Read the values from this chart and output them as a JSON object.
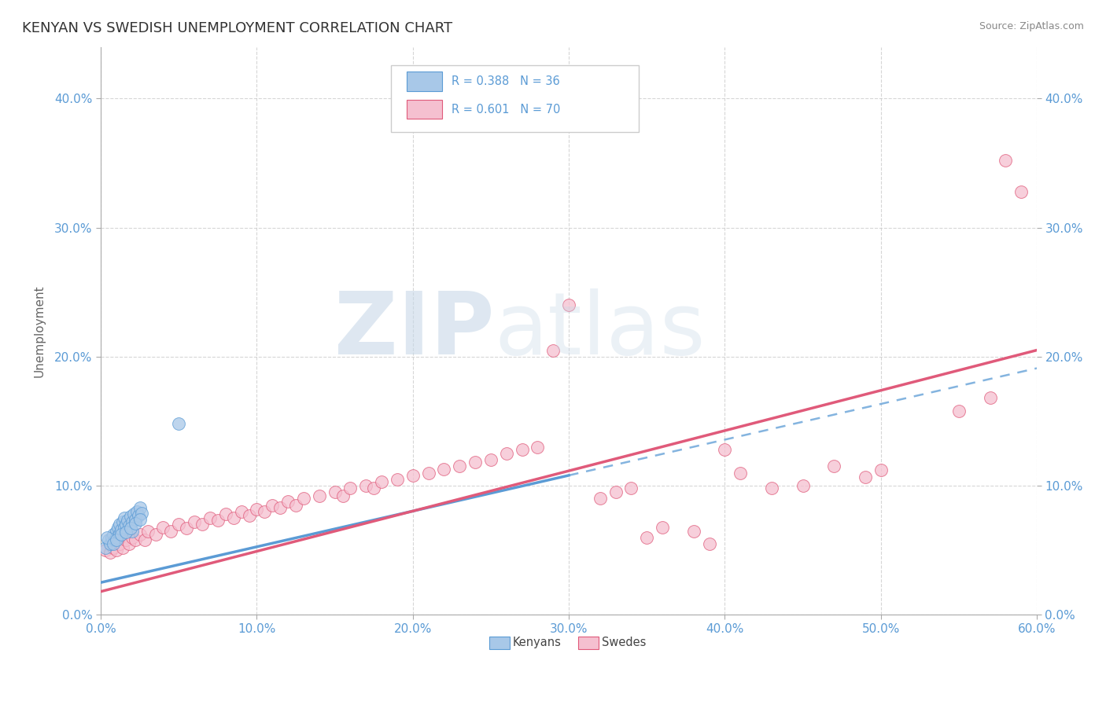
{
  "title": "KENYAN VS SWEDISH UNEMPLOYMENT CORRELATION CHART",
  "source": "Source: ZipAtlas.com",
  "xlim": [
    0,
    0.6
  ],
  "ylim": [
    0,
    0.44
  ],
  "xticks": [
    0.0,
    0.1,
    0.2,
    0.3,
    0.4,
    0.5,
    0.6
  ],
  "yticks": [
    0.0,
    0.1,
    0.2,
    0.3,
    0.4
  ],
  "xtick_labels": [
    "0.0%",
    "10.0%",
    "20.0%",
    "30.0%",
    "40.0%",
    "50.0%",
    "60.0%"
  ],
  "ytick_labels": [
    "0.0%",
    "10.0%",
    "20.0%",
    "30.0%",
    "40.0%"
  ],
  "watermark_zip": "ZIP",
  "watermark_atlas": "atlas",
  "kenya_line_color": "#5b9bd5",
  "sweden_line_color": "#e05a7a",
  "scatter_kenya_color": "#a8c8e8",
  "scatter_sweden_color": "#f5c0d0",
  "scatter_kenya_edge": "#5b9bd5",
  "scatter_sweden_edge": "#e05a7a",
  "axis_label_color": "#5b9bd5",
  "background_color": "#ffffff",
  "grid_color": "#cccccc",
  "title_fontsize": 13,
  "watermark_fontsize": 80,
  "kenya_line": {
    "x0": 0.0,
    "y0": 0.025,
    "x1": 0.3,
    "y1": 0.108,
    "solid_end": 0.3,
    "dash_end": 0.6
  },
  "sweden_line": {
    "x0": 0.0,
    "y0": 0.018,
    "x1": 0.6,
    "y1": 0.205
  },
  "kenya_scatter": [
    [
      0.003,
      0.052
    ],
    [
      0.005,
      0.058
    ],
    [
      0.006,
      0.055
    ],
    [
      0.007,
      0.06
    ],
    [
      0.008,
      0.062
    ],
    [
      0.009,
      0.058
    ],
    [
      0.01,
      0.065
    ],
    [
      0.01,
      0.06
    ],
    [
      0.011,
      0.068
    ],
    [
      0.012,
      0.063
    ],
    [
      0.012,
      0.07
    ],
    [
      0.013,
      0.066
    ],
    [
      0.014,
      0.072
    ],
    [
      0.015,
      0.068
    ],
    [
      0.015,
      0.075
    ],
    [
      0.016,
      0.07
    ],
    [
      0.017,
      0.073
    ],
    [
      0.018,
      0.069
    ],
    [
      0.019,
      0.076
    ],
    [
      0.02,
      0.072
    ],
    [
      0.02,
      0.065
    ],
    [
      0.021,
      0.078
    ],
    [
      0.022,
      0.074
    ],
    [
      0.023,
      0.08
    ],
    [
      0.024,
      0.077
    ],
    [
      0.025,
      0.083
    ],
    [
      0.026,
      0.079
    ],
    [
      0.004,
      0.06
    ],
    [
      0.008,
      0.055
    ],
    [
      0.01,
      0.058
    ],
    [
      0.013,
      0.062
    ],
    [
      0.05,
      0.148
    ],
    [
      0.016,
      0.064
    ],
    [
      0.019,
      0.067
    ],
    [
      0.022,
      0.071
    ],
    [
      0.025,
      0.074
    ]
  ],
  "sweden_scatter": [
    [
      0.003,
      0.05
    ],
    [
      0.006,
      0.048
    ],
    [
      0.008,
      0.052
    ],
    [
      0.01,
      0.05
    ],
    [
      0.012,
      0.055
    ],
    [
      0.014,
      0.052
    ],
    [
      0.016,
      0.058
    ],
    [
      0.018,
      0.055
    ],
    [
      0.02,
      0.06
    ],
    [
      0.022,
      0.058
    ],
    [
      0.025,
      0.062
    ],
    [
      0.028,
      0.058
    ],
    [
      0.03,
      0.065
    ],
    [
      0.035,
      0.062
    ],
    [
      0.04,
      0.068
    ],
    [
      0.045,
      0.065
    ],
    [
      0.05,
      0.07
    ],
    [
      0.055,
      0.067
    ],
    [
      0.06,
      0.072
    ],
    [
      0.065,
      0.07
    ],
    [
      0.07,
      0.075
    ],
    [
      0.075,
      0.073
    ],
    [
      0.08,
      0.078
    ],
    [
      0.085,
      0.075
    ],
    [
      0.09,
      0.08
    ],
    [
      0.095,
      0.077
    ],
    [
      0.1,
      0.082
    ],
    [
      0.105,
      0.08
    ],
    [
      0.11,
      0.085
    ],
    [
      0.115,
      0.083
    ],
    [
      0.12,
      0.088
    ],
    [
      0.125,
      0.085
    ],
    [
      0.13,
      0.09
    ],
    [
      0.14,
      0.092
    ],
    [
      0.15,
      0.095
    ],
    [
      0.155,
      0.092
    ],
    [
      0.16,
      0.098
    ],
    [
      0.17,
      0.1
    ],
    [
      0.175,
      0.098
    ],
    [
      0.18,
      0.103
    ],
    [
      0.19,
      0.105
    ],
    [
      0.2,
      0.108
    ],
    [
      0.21,
      0.11
    ],
    [
      0.22,
      0.113
    ],
    [
      0.23,
      0.115
    ],
    [
      0.24,
      0.118
    ],
    [
      0.25,
      0.12
    ],
    [
      0.26,
      0.125
    ],
    [
      0.27,
      0.128
    ],
    [
      0.28,
      0.13
    ],
    [
      0.29,
      0.205
    ],
    [
      0.3,
      0.24
    ],
    [
      0.32,
      0.09
    ],
    [
      0.33,
      0.095
    ],
    [
      0.34,
      0.098
    ],
    [
      0.35,
      0.06
    ],
    [
      0.36,
      0.068
    ],
    [
      0.38,
      0.065
    ],
    [
      0.39,
      0.055
    ],
    [
      0.4,
      0.128
    ],
    [
      0.41,
      0.11
    ],
    [
      0.43,
      0.098
    ],
    [
      0.45,
      0.1
    ],
    [
      0.47,
      0.115
    ],
    [
      0.49,
      0.107
    ],
    [
      0.5,
      0.112
    ],
    [
      0.55,
      0.158
    ],
    [
      0.57,
      0.168
    ],
    [
      0.58,
      0.352
    ],
    [
      0.59,
      0.328
    ]
  ]
}
